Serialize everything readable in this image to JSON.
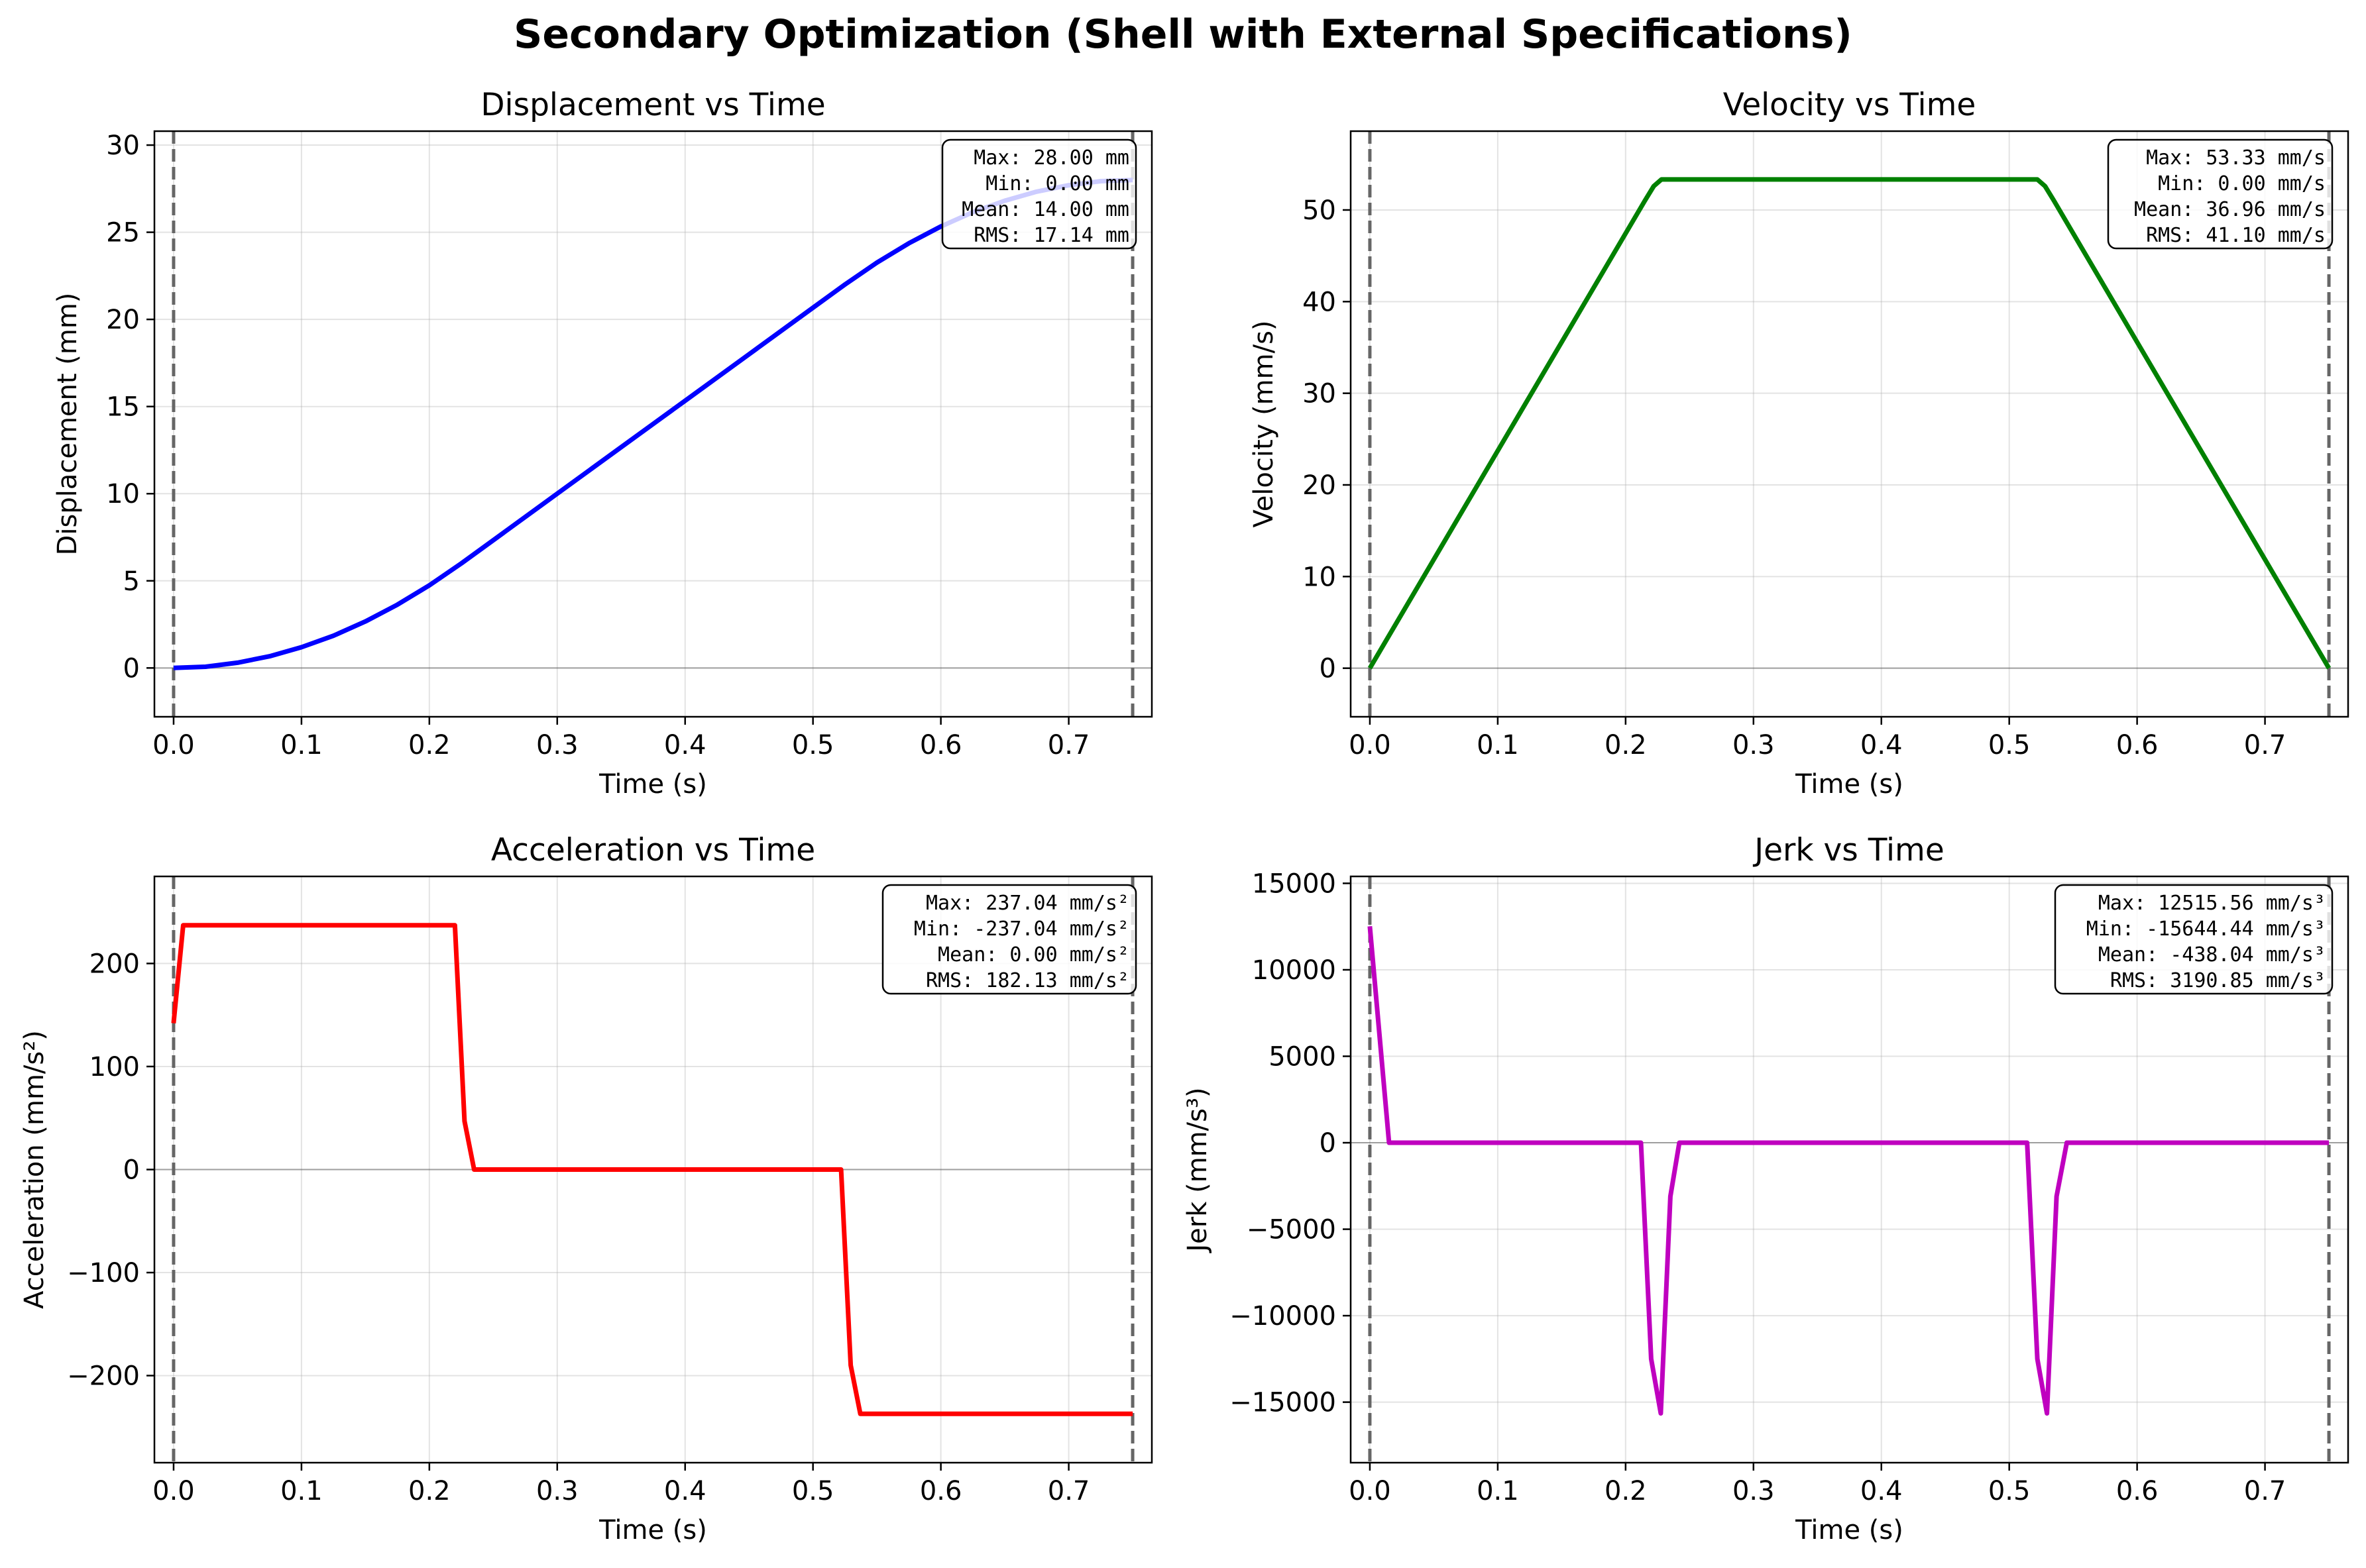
{
  "title": "Secondary Optimization (Shell with External Specifications)",
  "chart_data": [
    {
      "id": "displacement",
      "type": "line",
      "title": "Displacement vs Time",
      "xlabel": "Time (s)",
      "ylabel": "Displacement (mm)",
      "color": "#0000ff",
      "xlim": [
        -0.015,
        0.765
      ],
      "ylim": [
        -2.8,
        30.8
      ],
      "xticks": [
        0.0,
        0.1,
        0.2,
        0.3,
        0.4,
        0.5,
        0.6,
        0.7
      ],
      "xtick_labels": [
        "0.0",
        "0.1",
        "0.2",
        "0.3",
        "0.4",
        "0.5",
        "0.6",
        "0.7"
      ],
      "yticks": [
        0,
        5,
        10,
        15,
        20,
        25,
        30
      ],
      "ytick_labels": [
        "0",
        "5",
        "10",
        "15",
        "20",
        "25",
        "30"
      ],
      "vlines": [
        0.0,
        0.75
      ],
      "zero_line": true,
      "grid": true,
      "x": [
        0.0,
        0.025,
        0.05,
        0.075,
        0.1,
        0.125,
        0.15,
        0.175,
        0.2,
        0.225,
        0.25,
        0.3,
        0.35,
        0.4,
        0.45,
        0.5,
        0.525,
        0.55,
        0.575,
        0.6,
        0.625,
        0.65,
        0.675,
        0.7,
        0.725,
        0.75
      ],
      "y": [
        0.0,
        0.07,
        0.3,
        0.67,
        1.19,
        1.85,
        2.67,
        3.63,
        4.74,
        6.0,
        7.33,
        10.0,
        12.67,
        15.33,
        18.0,
        20.67,
        22.0,
        23.26,
        24.37,
        25.33,
        26.15,
        26.81,
        27.33,
        27.7,
        27.93,
        28.0
      ],
      "stats": [
        "Max: 28.00 mm",
        "Min: 0.00 mm",
        "Mean: 14.00 mm",
        "RMS: 17.14 mm"
      ]
    },
    {
      "id": "velocity",
      "type": "line",
      "title": "Velocity vs Time",
      "xlabel": "Time (s)",
      "ylabel": "Velocity (mm/s)",
      "color": "#008000",
      "xlim": [
        -0.015,
        0.765
      ],
      "ylim": [
        -5.3,
        58.6
      ],
      "xticks": [
        0.0,
        0.1,
        0.2,
        0.3,
        0.4,
        0.5,
        0.6,
        0.7
      ],
      "xtick_labels": [
        "0.0",
        "0.1",
        "0.2",
        "0.3",
        "0.4",
        "0.5",
        "0.6",
        "0.7"
      ],
      "yticks": [
        0,
        10,
        20,
        30,
        40,
        50
      ],
      "ytick_labels": [
        "0",
        "10",
        "20",
        "30",
        "40",
        "50"
      ],
      "vlines": [
        0.0,
        0.75
      ],
      "zero_line": true,
      "grid": true,
      "x": [
        0.0,
        0.215,
        0.222,
        0.228,
        0.522,
        0.528,
        0.535,
        0.75
      ],
      "y": [
        0.0,
        51.0,
        52.6,
        53.33,
        53.33,
        52.6,
        51.0,
        0.0
      ],
      "stats": [
        "Max: 53.33 mm/s",
        "Min: 0.00 mm/s",
        "Mean: 36.96 mm/s",
        "RMS: 41.10 mm/s"
      ]
    },
    {
      "id": "acceleration",
      "type": "line",
      "title": "Acceleration vs Time",
      "xlabel": "Time (s)",
      "ylabel": "Acceleration (mm/s²)",
      "color": "#ff0000",
      "xlim": [
        -0.015,
        0.765
      ],
      "ylim": [
        -284.5,
        284.5
      ],
      "xticks": [
        0.0,
        0.1,
        0.2,
        0.3,
        0.4,
        0.5,
        0.6,
        0.7
      ],
      "xtick_labels": [
        "0.0",
        "0.1",
        "0.2",
        "0.3",
        "0.4",
        "0.5",
        "0.6",
        "0.7"
      ],
      "yticks": [
        -200,
        -100,
        0,
        100,
        200
      ],
      "ytick_labels": [
        "−200",
        "−100",
        "0",
        "100",
        "200"
      ],
      "vlines": [
        0.0,
        0.75
      ],
      "zero_line": true,
      "grid": true,
      "x": [
        0.0,
        0.0075,
        0.22,
        0.2275,
        0.235,
        0.522,
        0.5295,
        0.537,
        0.75
      ],
      "y": [
        142.0,
        237.04,
        237.04,
        47.0,
        0.0,
        0.0,
        -190.0,
        -237.04,
        -237.04
      ],
      "stats": [
        "Max: 237.04 mm/s²",
        "Min: -237.04 mm/s²",
        "Mean: 0.00 mm/s²",
        "RMS: 182.13 mm/s²"
      ]
    },
    {
      "id": "jerk",
      "type": "line",
      "title": "Jerk vs Time",
      "xlabel": "Time (s)",
      "ylabel": "Jerk (mm/s³)",
      "color": "#bf00bf",
      "xlim": [
        -0.015,
        0.765
      ],
      "ylim": [
        -18500,
        15400
      ],
      "xticks": [
        0.0,
        0.1,
        0.2,
        0.3,
        0.4,
        0.5,
        0.6,
        0.7
      ],
      "xtick_labels": [
        "0.0",
        "0.1",
        "0.2",
        "0.3",
        "0.4",
        "0.5",
        "0.6",
        "0.7"
      ],
      "yticks": [
        -15000,
        -10000,
        -5000,
        0,
        5000,
        10000,
        15000
      ],
      "ytick_labels": [
        "−15000",
        "−10000",
        "−5000",
        "0",
        "5000",
        "10000",
        "15000"
      ],
      "vlines": [
        0.0,
        0.75
      ],
      "zero_line": true,
      "grid": true,
      "x": [
        0.0,
        0.015,
        0.212,
        0.22,
        0.2275,
        0.235,
        0.242,
        0.514,
        0.522,
        0.5295,
        0.537,
        0.545,
        0.75
      ],
      "y": [
        12515.56,
        0,
        0,
        -12500,
        -15644.44,
        -3100,
        0,
        0,
        -12500,
        -15644.44,
        -3100,
        0,
        0
      ],
      "stats": [
        "Max: 12515.56 mm/s³",
        "Min: -15644.44 mm/s³",
        "Mean: -438.04 mm/s³",
        "RMS: 3190.85 mm/s³"
      ]
    }
  ]
}
